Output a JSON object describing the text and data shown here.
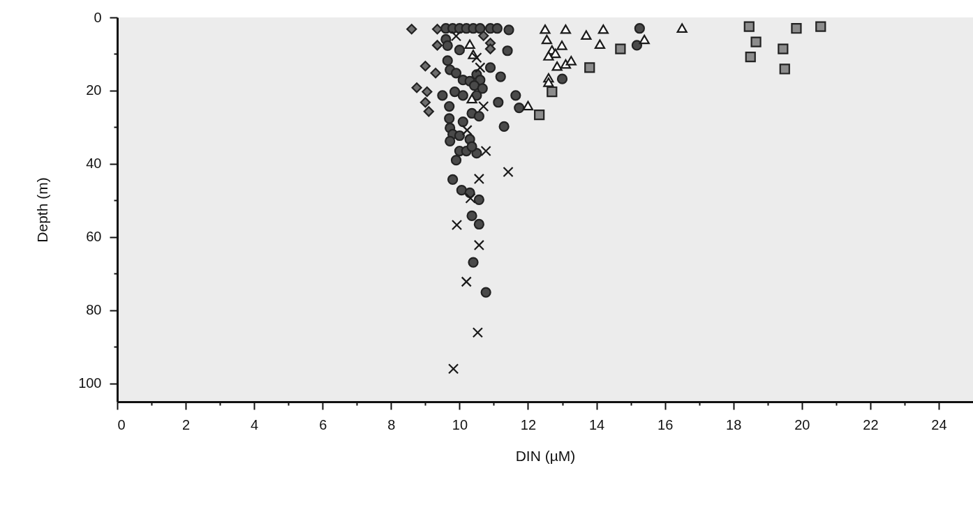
{
  "chart_data": {
    "type": "scatter",
    "xlabel": "DIN (µM)",
    "ylabel": "Depth  (m)",
    "xlim": [
      0,
      25
    ],
    "ylim": [
      105,
      0
    ],
    "xticks": [
      0,
      {
        "value": 1,
        "label": null
      },
      2,
      {
        "value": 3,
        "label": null
      },
      4,
      {
        "value": 5,
        "label": null
      },
      6,
      {
        "value": 7,
        "label": null
      },
      8,
      {
        "value": 9,
        "label": null
      },
      10,
      {
        "value": 11,
        "label": null
      },
      12,
      {
        "value": 13,
        "label": null
      },
      14,
      {
        "value": 15,
        "label": null
      },
      16,
      {
        "value": 17,
        "label": null
      },
      18,
      {
        "value": 19,
        "label": null
      },
      20,
      {
        "value": 21,
        "label": null
      },
      22,
      {
        "value": 23,
        "label": null
      },
      24
    ],
    "yticks": [
      0,
      {
        "value": 10,
        "label": null
      },
      20,
      {
        "value": 30,
        "label": null
      },
      40,
      {
        "value": 50,
        "label": null
      },
      60,
      {
        "value": 70,
        "label": null
      },
      80,
      {
        "value": 90,
        "label": null
      },
      100
    ],
    "grid": false,
    "series": [
      {
        "marker": "diamond",
        "color": "#6e6e6e",
        "x": [
          8.6,
          9.35,
          9.35,
          9.0,
          9.3,
          8.75,
          9.05,
          9.0,
          9.1,
          10.7,
          10.9,
          10.9
        ],
        "values": [
          3.2,
          3.2,
          7.6,
          13.3,
          15.2,
          19.2,
          20.3,
          23.2,
          25.7,
          5,
          7,
          8.6
        ]
      },
      {
        "marker": "circle",
        "color": "#4a4a4a",
        "x": [
          9.6,
          9.8,
          10.0,
          10.2,
          10.4,
          10.6,
          10.9,
          11.1,
          11.44,
          11.4,
          10.9,
          11.2,
          13.0,
          11.64,
          11.13,
          11.74,
          11.3,
          9.9,
          9.8,
          10.06,
          10.3,
          10.57,
          10.36,
          10.57,
          10.4,
          10.77,
          15.26,
          15.18,
          9.6,
          9.65,
          10.0,
          9.65,
          9.72,
          9.9,
          10.1,
          10.3,
          10.5,
          10.6,
          10.43,
          10.67,
          9.5,
          9.86,
          10.1,
          10.5,
          9.7,
          10.36,
          10.57,
          9.7,
          10.1,
          9.72,
          9.8,
          10.0,
          9.72,
          10.3,
          10.0,
          10.2,
          10.5,
          10.36
        ],
        "values": [
          3,
          3,
          3,
          3,
          3,
          3,
          3,
          3,
          3.4,
          9.1,
          13.7,
          16.2,
          16.8,
          21.3,
          23.2,
          24.7,
          29.8,
          39,
          44.3,
          47.2,
          47.9,
          49.8,
          54.2,
          56.5,
          66.9,
          75.1,
          3,
          7.6,
          6,
          7.7,
          8.9,
          11.8,
          14.3,
          15.2,
          17.1,
          17.4,
          15.6,
          17.1,
          18.6,
          19.4,
          21.3,
          20.3,
          21.3,
          21.3,
          24.3,
          26.2,
          27,
          27.6,
          28.5,
          30.2,
          31.9,
          32.3,
          33.8,
          33.3,
          36.5,
          36.5,
          37.1,
          35.3
        ]
      },
      {
        "marker": "triangle",
        "color": "#1a1a1a",
        "x": [
          12.5,
          13.1,
          13.7,
          14.2,
          14.1,
          12.55,
          12.99,
          12.7,
          12.8,
          12.6,
          12.85,
          13.1,
          13.26,
          12.6,
          12.6,
          12.0,
          10.3,
          10.36,
          10.4,
          16.5,
          15.4
        ],
        "values": [
          3.2,
          3.2,
          4.8,
          3.2,
          7.3,
          6,
          7.6,
          8.9,
          9.8,
          10.5,
          13.3,
          12.7,
          11.8,
          16.5,
          17.7,
          24.1,
          7.3,
          22.2,
          10.1,
          2.9,
          6
        ]
      },
      {
        "marker": "square",
        "color": "#8c8c8c",
        "x": [
          14.7,
          13.8,
          12.7,
          12.33,
          18.46,
          18.66,
          18.5,
          19.84,
          20.55,
          19.45,
          19.5
        ],
        "values": [
          8.6,
          13.7,
          20.3,
          26.6,
          2.5,
          6.7,
          10.8,
          3,
          2.5,
          8.6,
          14.1
        ]
      },
      {
        "marker": "cross",
        "color": "#1a1a1a",
        "x": [
          9.92,
          10.57,
          10.2,
          10.53,
          9.82,
          11.42,
          10.57,
          10.77,
          10.32,
          10.22,
          10.7,
          9.9,
          10.6,
          10.5
        ],
        "values": [
          56.7,
          62.2,
          72.2,
          86.1,
          96,
          42.2,
          44.1,
          36.5,
          49.4,
          30.8,
          24.3,
          5.1,
          13.7,
          11
        ]
      }
    ]
  }
}
